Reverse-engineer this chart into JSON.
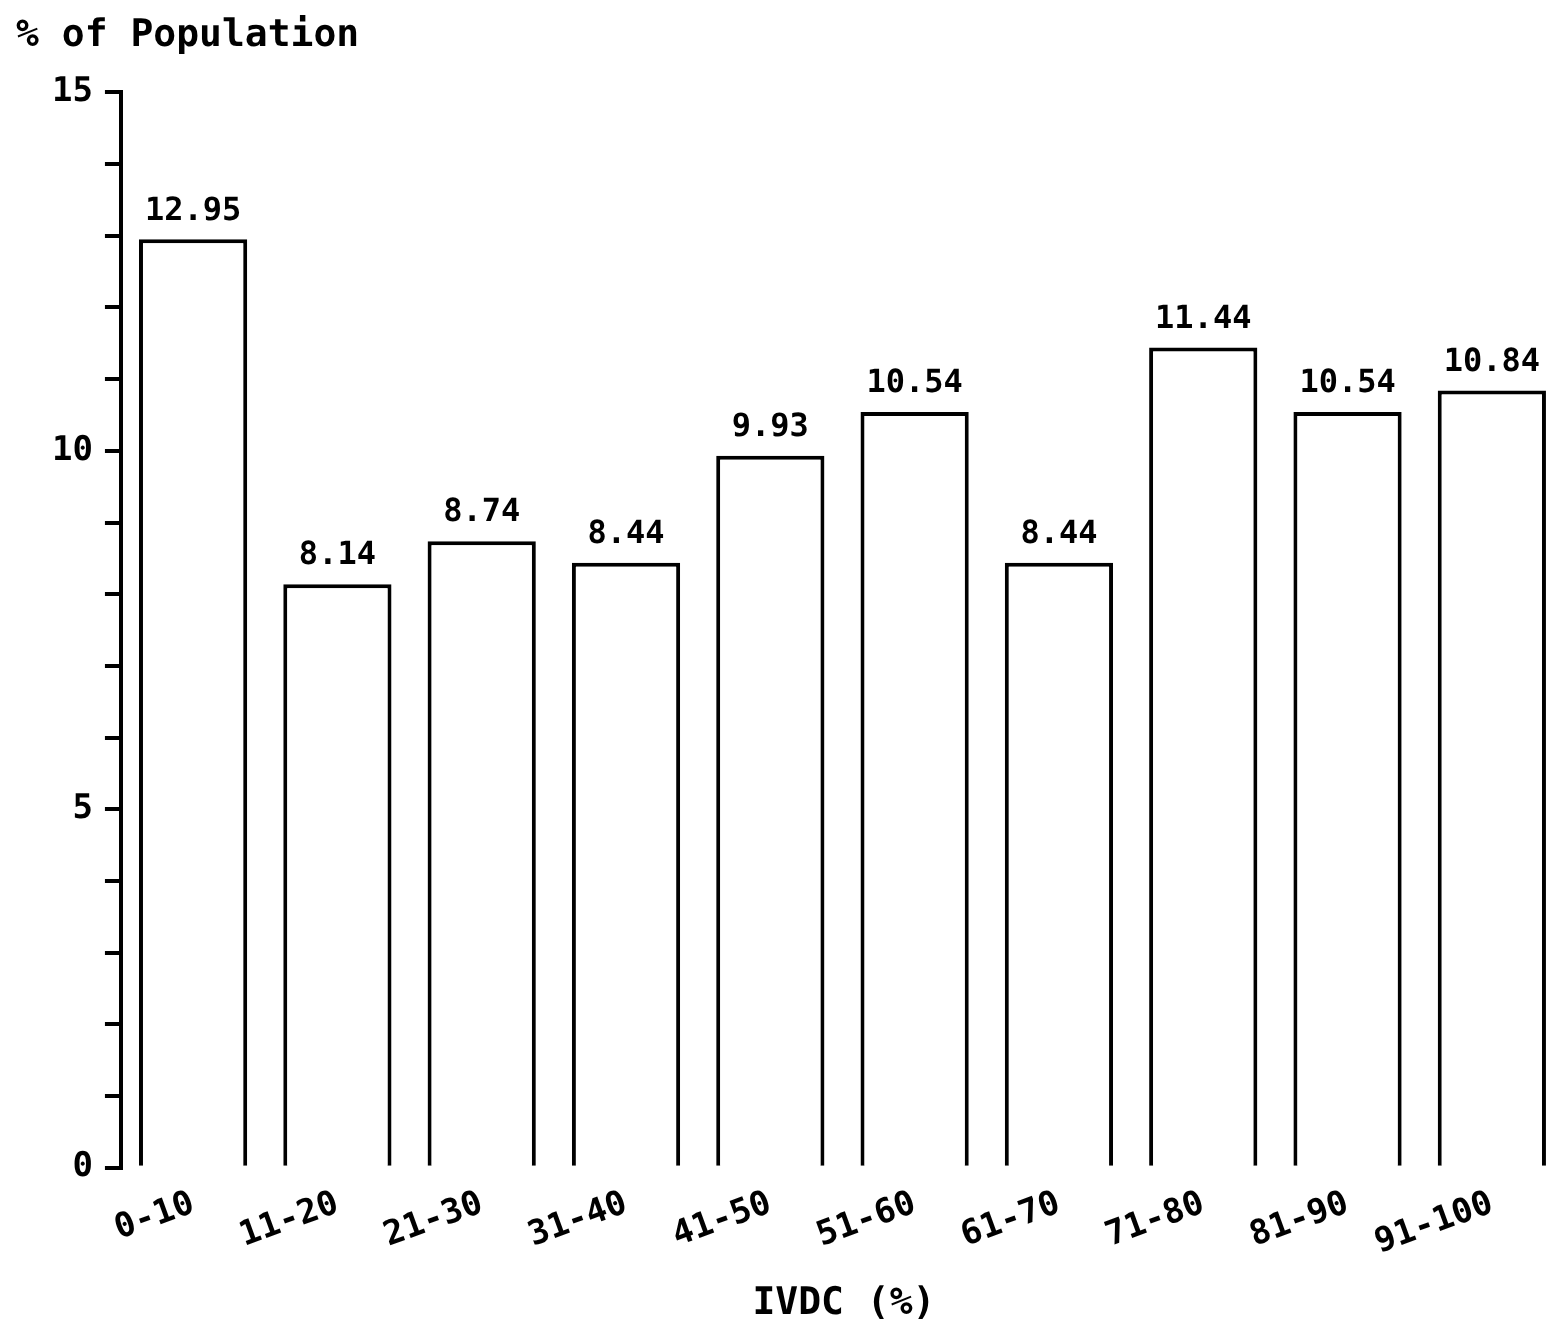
{
  "chart_data": {
    "type": "bar",
    "xlabel": "IVDC (%)",
    "ylabel": "% of Population",
    "categories": [
      "0-10",
      "11-20",
      "21-30",
      "31-40",
      "41-50",
      "51-60",
      "61-70",
      "71-80",
      "81-90",
      "91-100"
    ],
    "values": [
      12.95,
      8.14,
      8.74,
      8.44,
      9.93,
      10.54,
      8.44,
      11.44,
      10.54,
      10.84
    ],
    "color": "#ffffff",
    "ylim": [
      0,
      15
    ],
    "yticks": [
      0,
      {
        "value": 1,
        "label": null
      },
      {
        "value": 2,
        "label": null
      },
      {
        "value": 3,
        "label": null
      },
      {
        "value": 4,
        "label": null
      },
      5,
      {
        "value": 6,
        "label": null
      },
      {
        "value": 7,
        "label": null
      },
      {
        "value": 8,
        "label": null
      },
      {
        "value": 9,
        "label": null
      },
      10,
      {
        "value": 11,
        "label": null
      },
      {
        "value": 12,
        "label": null
      },
      {
        "value": 13,
        "label": null
      },
      {
        "value": 14,
        "label": null
      },
      15
    ],
    "data_labels": true,
    "grid": false,
    "legend": false
  }
}
